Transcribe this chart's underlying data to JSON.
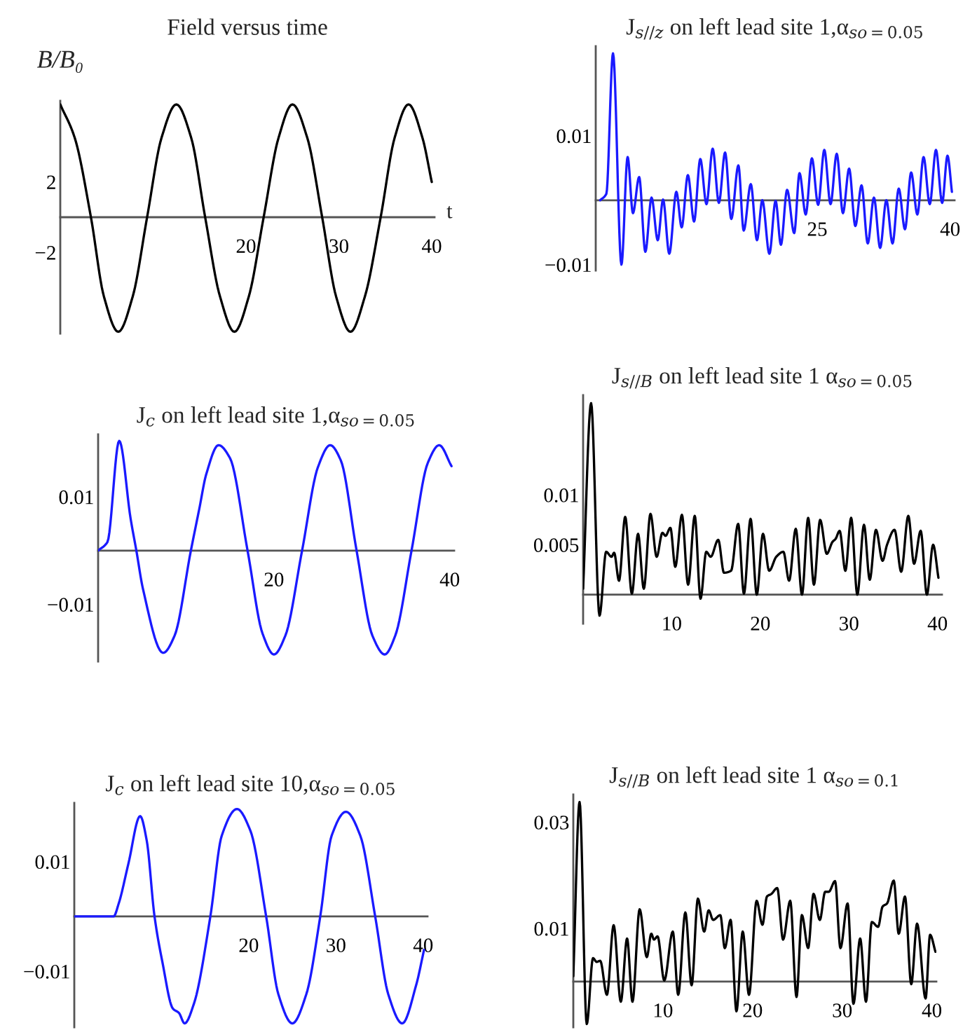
{
  "chart_data": [
    {
      "type": "line",
      "title": "Field versus time",
      "xlabel": "t",
      "ylabel": "B/B₀",
      "xlim": [
        0,
        40.3
      ],
      "ylim": [
        -6.6,
        6.6
      ],
      "xticks": [
        20,
        30,
        40
      ],
      "yticks": [
        -2,
        2
      ],
      "series": [
        {
          "color": "#000000",
          "x": [
            0,
            1.56,
            3.3,
            4.7,
            6.25,
            7.8,
            9.35,
            10.9,
            12.5,
            14.1,
            15.6,
            17.2,
            18.75,
            20.3,
            21.9,
            23.5,
            25,
            26.6,
            28.2,
            29.7,
            31.25,
            32.8,
            34.5,
            36,
            37.5,
            39,
            40
          ],
          "values": [
            6.4,
            4.5,
            0,
            -4.5,
            -6.5,
            -4.5,
            0,
            4.5,
            6.4,
            4.5,
            0,
            -4.5,
            -6.5,
            -4.5,
            0,
            4.5,
            6.4,
            4.5,
            0,
            -4.5,
            -6.5,
            -4.5,
            0,
            4.5,
            6.4,
            4.5,
            2
          ]
        }
      ]
    },
    {
      "type": "line",
      "title": "J$_{s//z}$ on left lead site 1,α$_{so=0.05}$",
      "xlim": [
        0,
        40.5
      ],
      "ylim": [
        -0.0109,
        0.0239
      ],
      "xticks": [
        25,
        40
      ],
      "yticks": [
        -0.01,
        0.01
      ],
      "series": [
        {
          "color": "#1a1aff",
          "x": [
            0.5,
            1.2,
            1.95,
            2.9,
            3.6,
            4.2,
            4.9,
            5.6,
            6.3,
            7.0,
            7.6,
            8.3,
            9.1,
            9.7,
            10.4,
            11.1,
            11.8,
            12.5,
            13.2,
            13.9,
            14.6,
            15.3,
            16.1,
            16.7,
            17.5,
            18.2,
            18.8,
            19.6,
            20.3,
            20.9,
            21.6,
            22.4,
            23.0,
            23.7,
            24.4,
            25.1,
            25.8,
            26.5,
            27.2,
            27.9,
            28.6,
            29.3,
            30.0,
            30.7,
            31.4,
            32.1,
            32.8,
            33.5,
            34.2,
            34.9,
            35.6,
            36.3,
            37.0,
            37.7,
            38.4,
            39.1,
            39.7,
            40.2
          ],
          "values": [
            0,
            0.001,
            0.0228,
            -0.01,
            0.0067,
            -0.002,
            0.0036,
            -0.008,
            0.0004,
            -0.0062,
            0.0001,
            -0.0083,
            0.0013,
            -0.0042,
            0.0039,
            -0.0033,
            0.0064,
            -0.0006,
            0.008,
            -0.0004,
            0.0074,
            -0.0029,
            0.0054,
            -0.0047,
            0.0025,
            -0.0062,
            0,
            -0.0083,
            -0.0001,
            -0.0069,
            0.0016,
            -0.0051,
            0.0042,
            -0.0022,
            0.0065,
            -0.0007,
            0.0078,
            -0.0006,
            0.0072,
            -0.002,
            0.0049,
            -0.004,
            0.0023,
            -0.0067,
            0.0004,
            -0.0074,
            0,
            -0.0067,
            0.0018,
            -0.0045,
            0.0043,
            -0.0022,
            0.0067,
            -0.0006,
            0.0078,
            -0.0004,
            0.0069,
            0.0013
          ]
        }
      ]
    },
    {
      "type": "line",
      "title": "J$_{c}$ on left lead site 1,α$_{so=0.05}$",
      "xlim": [
        0,
        40.5
      ],
      "ylim": [
        -0.0206,
        0.0216
      ],
      "xticks": [
        20,
        40
      ],
      "yticks": [
        -0.01,
        0.01
      ],
      "series": [
        {
          "color": "#1a1aff",
          "x": [
            0,
            1.06,
            2.4,
            3.7,
            4.35,
            5.1,
            7.4,
            8.7,
            10.55,
            11.5,
            12.3,
            13.7,
            15,
            17,
            18.7,
            20,
            21.3,
            23.2,
            25,
            26.4,
            27.6,
            29.4,
            31.2,
            32.6,
            33.8,
            35.65,
            37.5,
            38.8,
            40.2
          ],
          "values": [
            0,
            0.0016,
            0.0204,
            0.0059,
            0,
            -0.0071,
            -0.019,
            -0.0158,
            0,
            0.0077,
            0.0142,
            0.0196,
            0.0172,
            0,
            -0.0154,
            -0.0193,
            -0.0158,
            0,
            0.0155,
            0.0196,
            0.0168,
            0,
            -0.0158,
            -0.0193,
            -0.0158,
            0,
            0.0163,
            0.0196,
            0.0157
          ]
        }
      ]
    },
    {
      "type": "line",
      "title": "J$_{s//B}$ on left lead site 1 α$_{so=0.05}$",
      "xlim": [
        0,
        40.5
      ],
      "ylim": [
        -0.0029,
        0.02
      ],
      "xticks": [
        10,
        20,
        30,
        40
      ],
      "yticks": [
        0.005,
        0.01
      ],
      "series": [
        {
          "color": "#000000",
          "x": [
            0,
            0.9,
            1.85,
            2.6,
            3.2,
            3.5,
            4.05,
            4.75,
            5.5,
            6.2,
            6.85,
            7.6,
            8.3,
            8.95,
            9.3,
            9.85,
            10.4,
            11.15,
            11.85,
            12.6,
            13.25,
            13.9,
            14.4,
            15.25,
            15.9,
            16.7,
            17.5,
            18.15,
            18.9,
            19.6,
            20.3,
            21,
            21.8,
            22.6,
            23.25,
            24,
            24.7,
            25.4,
            26.05,
            26.75,
            27.5,
            28.15,
            28.5,
            28.95,
            29.6,
            30.25,
            30.95,
            31.7,
            32.35,
            33.05,
            33.8,
            34.3,
            35.15,
            35.9,
            36.7,
            37.35,
            38.1,
            38.8,
            39.5,
            40.1
          ],
          "values": [
            0.0006,
            0.0192,
            -0.0021,
            0.0043,
            0.0038,
            0.0042,
            0.0014,
            0.0078,
            0.0001,
            0.0061,
            0.0006,
            0.0081,
            0.0038,
            0.0062,
            0.0059,
            0.0067,
            0.0028,
            0.008,
            0.001,
            0.0079,
            -0.0004,
            0.0043,
            0.0038,
            0.0055,
            0.0022,
            0.0024,
            0.0071,
            0.0001,
            0.0076,
            0,
            0.0061,
            0.0024,
            0.0038,
            0.0043,
            0.0014,
            0.0066,
            0,
            0.0077,
            0.001,
            0.0075,
            0.0041,
            0.0053,
            0.0056,
            0.0064,
            0.0024,
            0.0077,
            0,
            0.007,
            0.0015,
            0.0065,
            0.0034,
            0.005,
            0.0065,
            0.0023,
            0.0079,
            0.0031,
            0.0064,
            0,
            0.005,
            0.0017
          ]
        }
      ]
    },
    {
      "type": "line",
      "title": "J$_{c}$ on left lead site 10,α$_{so=0.05}$",
      "xlim": [
        0,
        40.5
      ],
      "ylim": [
        -0.0202,
        0.0207
      ],
      "xticks": [
        20,
        30,
        40
      ],
      "yticks": [
        -0.01,
        0.01
      ],
      "series": [
        {
          "color": "#1a1aff",
          "x": [
            0,
            4.5,
            5.1,
            6.2,
            7.55,
            8.3,
            9.2,
            10.1,
            11.3,
            12,
            12.65,
            13.7,
            15.6,
            16.9,
            18.65,
            20.2,
            22,
            23.4,
            25,
            26.6,
            28.2,
            29.5,
            31.15,
            32.8,
            34.5,
            36,
            37.6,
            39.2,
            40.1
          ],
          "values": [
            0,
            0,
            0.0024,
            0.0096,
            0.0183,
            0.0139,
            0,
            -0.0083,
            -0.0168,
            -0.0176,
            -0.0195,
            -0.016,
            0,
            0.0147,
            0.0196,
            0.0156,
            0,
            -0.0142,
            -0.0195,
            -0.0142,
            0,
            0.0147,
            0.0191,
            0.0147,
            0,
            -0.0142,
            -0.0195,
            -0.0125,
            -0.0061
          ]
        }
      ]
    },
    {
      "type": "line",
      "title": "J$_{s//B}$ on left lead site 1 α$_{so=0.1}$",
      "xlim": [
        0,
        40.5
      ],
      "ylim": [
        -0.0086,
        0.0352
      ],
      "xticks": [
        10,
        20,
        30,
        40
      ],
      "yticks": [
        0.01,
        0.03
      ],
      "series": [
        {
          "color": "#000000",
          "x": [
            0,
            0.7,
            1.5,
            2.2,
            2.6,
            3,
            3.75,
            4.5,
            5.3,
            6,
            6.6,
            7.4,
            8.2,
            8.7,
            9,
            9.4,
            10.15,
            11.1,
            11.7,
            12.5,
            13.2,
            13.9,
            14.6,
            15.1,
            15.6,
            16.4,
            16.9,
            17.55,
            18.2,
            18.9,
            19.6,
            20.45,
            21.1,
            21.6,
            22.1,
            22.75,
            23.4,
            24.2,
            24.9,
            25.5,
            26.2,
            26.8,
            27.5,
            28.1,
            28.5,
            29.2,
            29.8,
            30.6,
            31.25,
            32,
            32.65,
            33.3,
            34,
            34.5,
            35,
            35.75,
            36.3,
            37,
            37.7,
            38.35,
            39.3,
            39.8,
            40.4
          ],
          "values": [
            0.001,
            0.0338,
            -0.008,
            0.0044,
            0.0037,
            0.0039,
            -0.0025,
            0.0106,
            -0.0038,
            0.0081,
            -0.0038,
            0.0136,
            0.0046,
            0.009,
            0.0079,
            0.0085,
            0.0002,
            0.0094,
            -0.0025,
            0.013,
            -0.0007,
            0.0156,
            0.0094,
            0.0134,
            0.0116,
            0.0125,
            0.0063,
            0.0116,
            -0.0056,
            0.0094,
            -0.0025,
            0.0152,
            0.0107,
            0.016,
            0.0165,
            0.0176,
            0.0079,
            0.0152,
            -0.0029,
            0.0125,
            0.0063,
            0.0165,
            0.0116,
            0.0169,
            0.0169,
            0.0189,
            0.0063,
            0.0147,
            -0.0042,
            0.0081,
            -0.0038,
            0.0112,
            0.0103,
            0.0141,
            0.0147,
            0.019,
            0.009,
            0.016,
            -0.0005,
            0.0109,
            -0.0032,
            0.0088,
            0.0056
          ]
        }
      ]
    }
  ]
}
